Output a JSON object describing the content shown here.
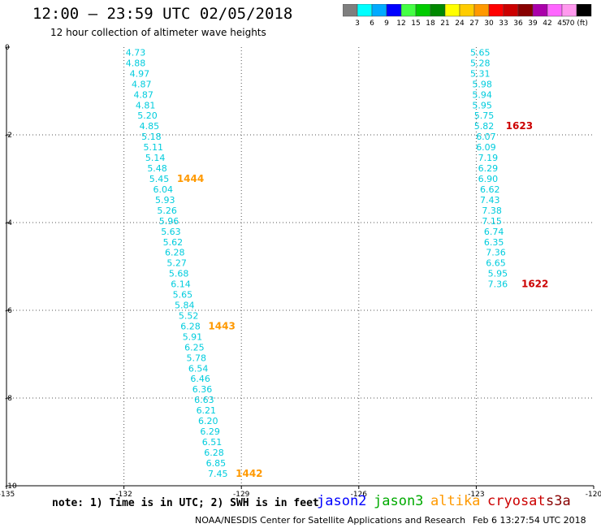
{
  "header": {
    "title": "12:00 – 23:59 UTC 02/05/2018",
    "subtitle": "12 hour collection of altimeter wave heights"
  },
  "colorbar": {
    "labels": [
      "3",
      "6",
      "9",
      "12",
      "15",
      "18",
      "21",
      "24",
      "27",
      "30",
      "33",
      "36",
      "39",
      "42",
      "45",
      "70 (ft)"
    ],
    "colors": [
      "#7f7f7f",
      "#00ffff",
      "#00aaff",
      "#0000ff",
      "#44ff44",
      "#00cc00",
      "#008800",
      "#ffff00",
      "#ffcc00",
      "#ff9900",
      "#ff0000",
      "#cc0000",
      "#880000",
      "#aa00aa",
      "#ff66ff",
      "#ff99ee",
      "#000000"
    ]
  },
  "footer": {
    "note": "note: 1) Time is in UTC; 2) SWH is in feet",
    "legend": [
      {
        "label": "jason2",
        "color": "#0000ff"
      },
      {
        "label": "jason3",
        "color": "#00aa00"
      },
      {
        "label": "altika",
        "color": "#ff9900"
      },
      {
        "label": "cryosat",
        "color": "#cc0000"
      },
      {
        "label": "s3a",
        "color": "#880000"
      }
    ],
    "credit": "NOAA/NESDIS Center for Satellite Applications and Research",
    "timestamp": "Feb  6 13:27:54 UTC 2018"
  },
  "chart_data": {
    "type": "scatter",
    "title": "12:00 – 23:59 UTC 02/05/2018",
    "xlim": [
      -135,
      -120
    ],
    "ylim": [
      -10,
      0
    ],
    "x_ticks": [
      "-135",
      "-132",
      "-129",
      "-126",
      "-123",
      "-120"
    ],
    "y_ticks": [
      "0",
      "-2",
      "-4",
      "-6",
      "-8",
      "-10"
    ],
    "grid": "dotted",
    "value_color": "#00ccdd",
    "time_color_altika": "#ff9900",
    "time_color_cryosat": "#cc0000",
    "series": [
      {
        "name": "altika",
        "points": [
          {
            "x": -131.7,
            "y": -0.12,
            "v": "4.73"
          },
          {
            "x": -131.7,
            "y": -0.36,
            "v": "4.88"
          },
          {
            "x": -131.6,
            "y": -0.6,
            "v": "4.97"
          },
          {
            "x": -131.55,
            "y": -0.84,
            "v": "4.87"
          },
          {
            "x": -131.5,
            "y": -1.08,
            "v": "4.87"
          },
          {
            "x": -131.45,
            "y": -1.32,
            "v": "4.81"
          },
          {
            "x": -131.4,
            "y": -1.56,
            "v": "5.20"
          },
          {
            "x": -131.35,
            "y": -1.8,
            "v": "4.85"
          },
          {
            "x": -131.3,
            "y": -2.04,
            "v": "5.18"
          },
          {
            "x": -131.25,
            "y": -2.28,
            "v": "5.11"
          },
          {
            "x": -131.2,
            "y": -2.52,
            "v": "5.14"
          },
          {
            "x": -131.15,
            "y": -2.76,
            "v": "5.48"
          },
          {
            "x": -131.1,
            "y": -3.0,
            "v": "5.45"
          },
          {
            "x": -131.0,
            "y": -3.24,
            "v": "6.04"
          },
          {
            "x": -130.95,
            "y": -3.48,
            "v": "5.93"
          },
          {
            "x": -130.9,
            "y": -3.72,
            "v": "5.26"
          },
          {
            "x": -130.85,
            "y": -3.96,
            "v": "5.96"
          },
          {
            "x": -130.8,
            "y": -4.2,
            "v": "5.63"
          },
          {
            "x": -130.75,
            "y": -4.44,
            "v": "5.62"
          },
          {
            "x": -130.7,
            "y": -4.68,
            "v": "6.28"
          },
          {
            "x": -130.65,
            "y": -4.92,
            "v": "5.27"
          },
          {
            "x": -130.6,
            "y": -5.16,
            "v": "5.68"
          },
          {
            "x": -130.55,
            "y": -5.4,
            "v": "6.14"
          },
          {
            "x": -130.5,
            "y": -5.64,
            "v": "5.65"
          },
          {
            "x": -130.45,
            "y": -5.88,
            "v": "5.84"
          },
          {
            "x": -130.35,
            "y": -6.12,
            "v": "5.52"
          },
          {
            "x": -130.3,
            "y": -6.36,
            "v": "6.28"
          },
          {
            "x": -130.25,
            "y": -6.6,
            "v": "5.91"
          },
          {
            "x": -130.2,
            "y": -6.84,
            "v": "6.25"
          },
          {
            "x": -130.15,
            "y": -7.08,
            "v": "5.78"
          },
          {
            "x": -130.1,
            "y": -7.32,
            "v": "6.54"
          },
          {
            "x": -130.05,
            "y": -7.56,
            "v": "6.46"
          },
          {
            "x": -130.0,
            "y": -7.8,
            "v": "6.36"
          },
          {
            "x": -129.95,
            "y": -8.04,
            "v": "6.63"
          },
          {
            "x": -129.9,
            "y": -8.28,
            "v": "6.21"
          },
          {
            "x": -129.85,
            "y": -8.52,
            "v": "6.20"
          },
          {
            "x": -129.8,
            "y": -8.76,
            "v": "6.29"
          },
          {
            "x": -129.75,
            "y": -9.0,
            "v": "6.51"
          },
          {
            "x": -129.7,
            "y": -9.24,
            "v": "6.28"
          },
          {
            "x": -129.65,
            "y": -9.48,
            "v": "6.85"
          },
          {
            "x": -129.6,
            "y": -9.72,
            "v": "7.45"
          }
        ],
        "time_labels": [
          {
            "x": -130.3,
            "y": -3.0,
            "t": "1444"
          },
          {
            "x": -129.5,
            "y": -6.36,
            "t": "1443"
          },
          {
            "x": -128.8,
            "y": -9.72,
            "t": "1442"
          }
        ]
      },
      {
        "name": "cryosat",
        "points": [
          {
            "x": -122.9,
            "y": -0.12,
            "v": "5.65"
          },
          {
            "x": -122.9,
            "y": -0.36,
            "v": "5.28"
          },
          {
            "x": -122.9,
            "y": -0.6,
            "v": "5.31"
          },
          {
            "x": -122.85,
            "y": -0.84,
            "v": "5.98"
          },
          {
            "x": -122.85,
            "y": -1.08,
            "v": "5.94"
          },
          {
            "x": -122.85,
            "y": -1.32,
            "v": "5.95"
          },
          {
            "x": -122.8,
            "y": -1.56,
            "v": "5.75"
          },
          {
            "x": -122.8,
            "y": -1.8,
            "v": "5.82"
          },
          {
            "x": -122.75,
            "y": -2.04,
            "v": "6.07"
          },
          {
            "x": -122.75,
            "y": -2.28,
            "v": "6.09"
          },
          {
            "x": -122.7,
            "y": -2.52,
            "v": "7.19"
          },
          {
            "x": -122.7,
            "y": -2.76,
            "v": "6.29"
          },
          {
            "x": -122.7,
            "y": -3.0,
            "v": "6.90"
          },
          {
            "x": -122.65,
            "y": -3.24,
            "v": "6.62"
          },
          {
            "x": -122.65,
            "y": -3.48,
            "v": "7.43"
          },
          {
            "x": -122.6,
            "y": -3.72,
            "v": "7.38"
          },
          {
            "x": -122.6,
            "y": -3.96,
            "v": "7.15"
          },
          {
            "x": -122.55,
            "y": -4.2,
            "v": "6.74"
          },
          {
            "x": -122.55,
            "y": -4.44,
            "v": "6.35"
          },
          {
            "x": -122.5,
            "y": -4.68,
            "v": "7.36"
          },
          {
            "x": -122.5,
            "y": -4.92,
            "v": "6.65"
          },
          {
            "x": -122.45,
            "y": -5.16,
            "v": "5.95"
          },
          {
            "x": -122.45,
            "y": -5.4,
            "v": "7.36"
          }
        ],
        "time_labels": [
          {
            "x": -121.9,
            "y": -1.8,
            "t": "1623"
          },
          {
            "x": -121.5,
            "y": -5.4,
            "t": "1622"
          }
        ]
      }
    ]
  }
}
